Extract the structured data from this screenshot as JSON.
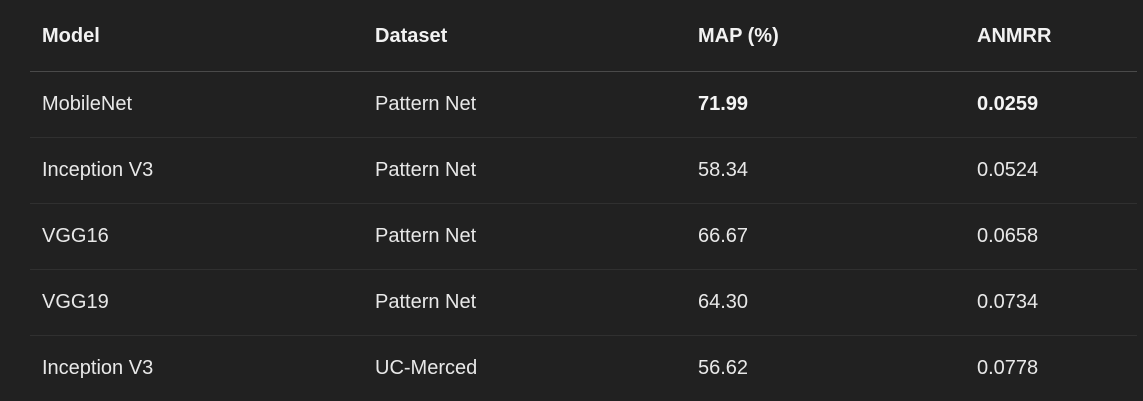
{
  "table": {
    "headers": [
      "Model",
      "Dataset",
      "MAP (%)",
      "ANMRR"
    ],
    "rows": [
      {
        "model": "MobileNet",
        "dataset": "Pattern Net",
        "map": "71.99",
        "anmrr": "0.0259",
        "best": true
      },
      {
        "model": "Inception V3",
        "dataset": "Pattern Net",
        "map": "58.34",
        "anmrr": "0.0524",
        "best": false
      },
      {
        "model": "VGG16",
        "dataset": "Pattern Net",
        "map": "66.67",
        "anmrr": "0.0658",
        "best": false
      },
      {
        "model": "VGG19",
        "dataset": "Pattern Net",
        "map": "64.30",
        "anmrr": "0.0734",
        "best": false
      },
      {
        "model": "Inception V3",
        "dataset": "UC-Merced",
        "map": "56.62",
        "anmrr": "0.0778",
        "best": false
      }
    ]
  },
  "colors": {
    "background": "#212121",
    "text": "#ececec",
    "header_divider": "#4a4a4a",
    "row_divider": "#303030"
  }
}
